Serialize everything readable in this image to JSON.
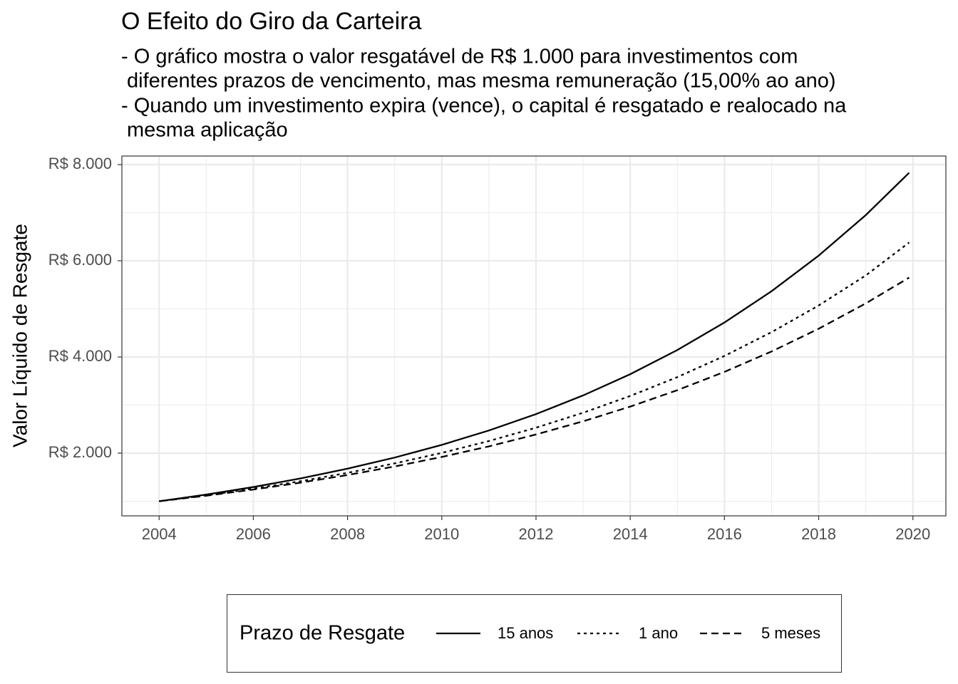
{
  "chart_data": {
    "type": "line",
    "title": "O Efeito do Giro da Carteira",
    "subtitle": [
      "- O gráfico mostra o valor resgatável de R$ 1.000 para investimentos com",
      "diferentes prazos de vencimento, mas mesma remuneração (15,00% ao ano)",
      "- Quando um investimento expira (vence), o capital é resgatado e realocado na",
      "mesma aplicação"
    ],
    "y_label": "Valor Líquido de Resgate",
    "x": [
      2004,
      2005,
      2006,
      2007,
      2008,
      2009,
      2010,
      2011,
      2012,
      2013,
      2014,
      2015,
      2016,
      2017,
      2018,
      2019,
      2019.92
    ],
    "series": [
      {
        "name": "15 anos",
        "color": "#000000",
        "dash": "solid",
        "values": [
          1000,
          1138,
          1295,
          1474,
          1677,
          1908,
          2172,
          2471,
          2812,
          3200,
          3642,
          4144,
          4716,
          5367,
          6107,
          6950,
          7830
        ]
      },
      {
        "name": "1 ano",
        "color": "#000000",
        "dash": "dotted",
        "values": [
          1000,
          1123,
          1261,
          1416,
          1590,
          1786,
          2005,
          2252,
          2529,
          2840,
          3189,
          3581,
          4021,
          4516,
          5071,
          5695,
          6380
        ]
      },
      {
        "name": "5 meses",
        "color": "#000000",
        "dash": "dashed",
        "values": [
          1000,
          1115,
          1243,
          1386,
          1545,
          1723,
          1921,
          2141,
          2388,
          2662,
          2968,
          3309,
          3690,
          4114,
          4587,
          5114,
          5650
        ]
      }
    ],
    "legend_title": "Prazo de Resgate",
    "legend_position": "bottom",
    "xlim": [
      2003.21,
      2020.7
    ],
    "ylim": [
      696,
      8178
    ],
    "xticks": [
      2004,
      2006,
      2008,
      2010,
      2012,
      2014,
      2016,
      2018,
      2020
    ],
    "x_minor_ticks": [
      2005,
      2007,
      2009,
      2011,
      2013,
      2015,
      2017,
      2019
    ],
    "yticks": [
      {
        "value": 2000,
        "label": "R$ 2.000"
      },
      {
        "value": 4000,
        "label": "R$ 4.000"
      },
      {
        "value": 6000,
        "label": "R$ 6.000"
      },
      {
        "value": 8000,
        "label": "R$ 8.000"
      }
    ],
    "y_minor_ticks": [
      1000,
      3000,
      5000,
      7000
    ],
    "grid": true
  }
}
